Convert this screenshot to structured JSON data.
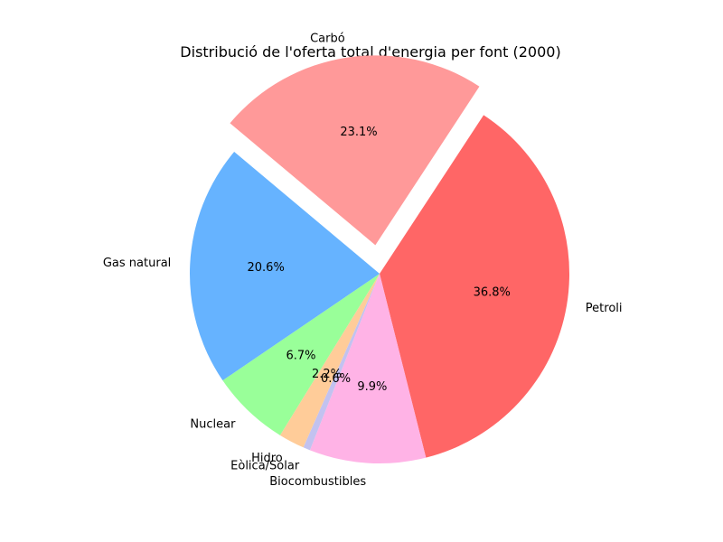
{
  "chart_data": {
    "type": "pie",
    "title": "Distribució de l'oferta total d'energia per font (2000)",
    "slices": [
      {
        "label": "Carbó",
        "value": 23.1,
        "pct_label": "23.1%",
        "color": "#ff9999",
        "exploded": true
      },
      {
        "label": "Petroli",
        "value": 36.8,
        "pct_label": "36.8%",
        "color": "#ff6666",
        "exploded": false
      },
      {
        "label": "Biocombustibles",
        "value": 9.9,
        "pct_label": "9.9%",
        "color": "#ffb3e6",
        "exploded": false
      },
      {
        "label": "Eòlica/Solar",
        "value": 0.6,
        "pct_label": "0.6%",
        "color": "#c2c2f0",
        "exploded": false
      },
      {
        "label": "Hidro",
        "value": 2.2,
        "pct_label": "2.2%",
        "color": "#ffcc99",
        "exploded": false
      },
      {
        "label": "Nuclear",
        "value": 6.7,
        "pct_label": "6.7%",
        "color": "#99ff99",
        "exploded": false
      },
      {
        "label": "Gas natural",
        "value": 20.6,
        "pct_label": "20.6%",
        "color": "#66b3ff",
        "exploded": false
      }
    ],
    "start_angle_deg": 140,
    "direction": "clockwise",
    "legend": "none"
  }
}
